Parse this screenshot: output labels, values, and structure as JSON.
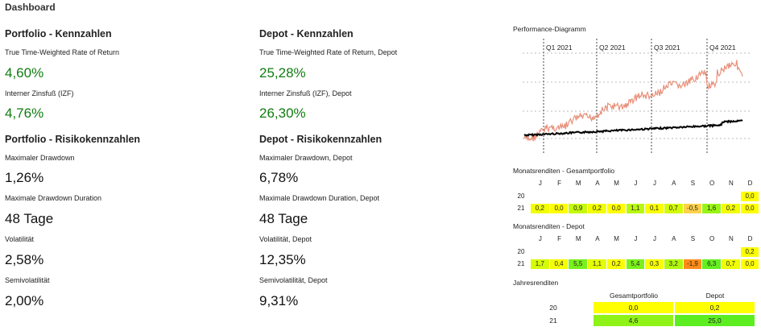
{
  "page_title": "Dashboard",
  "portfolio_kpi": {
    "heading": "Portfolio - Kennzahlen",
    "twrr_label": "True Time-Weighted Rate of Return",
    "twrr_value": "4,60%",
    "izf_label": "Interner Zinsfuß (IZF)",
    "izf_value": "4,76%"
  },
  "depot_kpi": {
    "heading": "Depot - Kennzahlen",
    "twrr_label": "True Time-Weighted Rate of Return, Depot",
    "twrr_value": "25,28%",
    "izf_label": "Interner Zinsfuß (IZF), Depot",
    "izf_value": "26,30%"
  },
  "portfolio_risk": {
    "heading": "Portfolio - Risikokennzahlen",
    "mdd_label": "Maximaler Drawdown",
    "mdd_value": "1,26%",
    "mddd_label": "Maximale Drawdown Duration",
    "mddd_value": "48 Tage",
    "vol_label": "Volatilität",
    "vol_value": "2,58%",
    "semivol_label": "Semivolatilität",
    "semivol_value": "2,00%"
  },
  "depot_risk": {
    "heading": "Depot - Risikokennzahlen",
    "mdd_label": "Maximaler Drawdown, Depot",
    "mdd_value": "6,78%",
    "mddd_label": "Maximale Drawdown Duration, Depot",
    "mddd_value": "48 Tage",
    "vol_label": "Volatilität, Depot",
    "vol_value": "12,35%",
    "semivol_label": "Semivolatilität, Depot",
    "semivol_value": "9,31%"
  },
  "performance_chart": {
    "title": "Performance-Diagramm",
    "quarters": [
      "Q1 2021",
      "Q2 2021",
      "Q3 2021",
      "Q4 2021"
    ],
    "series_colors": {
      "depot": "#e8907a",
      "portfolio": "#000000"
    }
  },
  "months": [
    "J",
    "F",
    "M",
    "A",
    "M",
    "J",
    "J",
    "A",
    "S",
    "O",
    "N",
    "D"
  ],
  "monthly_portfolio": {
    "title": "Monatsrenditen - Gesamtportfolio",
    "rows": [
      {
        "year": "20",
        "values": [
          null,
          null,
          null,
          null,
          null,
          null,
          null,
          null,
          null,
          null,
          null,
          "0,0"
        ]
      },
      {
        "year": "21",
        "values": [
          "0,2",
          "0,0",
          "0,9",
          "0,2",
          "0,0",
          "1,1",
          "0,1",
          "0,7",
          "-0,5",
          "1,6",
          "0,2",
          "0,0"
        ]
      }
    ]
  },
  "monthly_depot": {
    "title": "Monatsrenditen - Depot",
    "rows": [
      {
        "year": "20",
        "values": [
          null,
          null,
          null,
          null,
          null,
          null,
          null,
          null,
          null,
          null,
          null,
          "0,2"
        ]
      },
      {
        "year": "21",
        "values": [
          "1,7",
          "0,4",
          "5,5",
          "1,1",
          "0,2",
          "5,4",
          "0,3",
          "3,2",
          "-1,9",
          "6,3",
          "0,7",
          "0,0"
        ]
      }
    ]
  },
  "yearly": {
    "title": "Jahresrenditen",
    "columns": [
      "Gesamtportfolio",
      "Depot"
    ],
    "rows": [
      {
        "year": "20",
        "values": [
          "0,0",
          "0,2"
        ]
      },
      {
        "year": "21",
        "values": [
          "4,6",
          "25,0"
        ]
      }
    ]
  }
}
